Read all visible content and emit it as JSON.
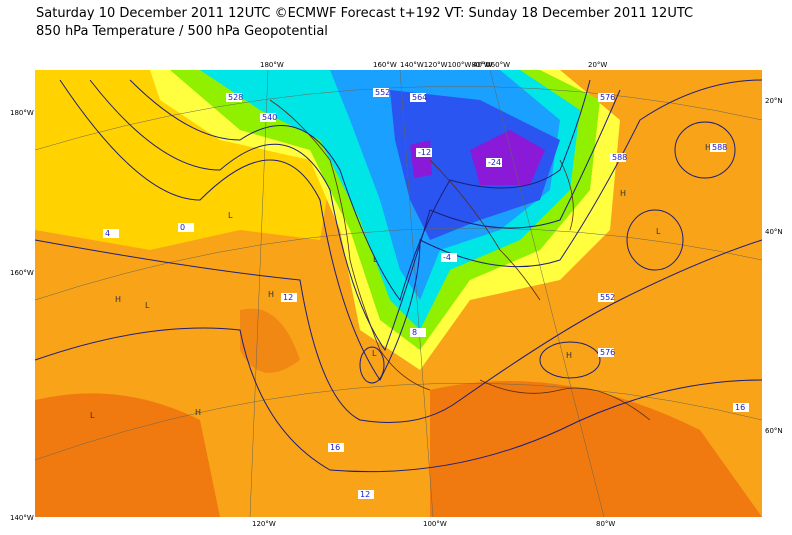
{
  "header": {
    "line1": "Saturday 10 December 2011 12UTC ©ECMWF Forecast t+192 VT: Sunday 18 December 2011 12UTC",
    "line2": "850 hPa Temperature / 500 hPa Geopotential"
  },
  "map": {
    "top_labels": [
      "180°W",
      "160°W",
      "140°W120°W100°W80°W60°W",
      "40°W",
      "20°W"
    ],
    "left_labels": [
      "180°W",
      "160°W",
      "140°W"
    ],
    "right_labels": [
      "20°N",
      "40°N",
      "60°N"
    ],
    "bottom_labels": [
      "120°W",
      "100°W",
      "80°W"
    ],
    "pressure_centers": [
      "H",
      "L",
      "L",
      "H",
      "L",
      "H",
      "H",
      "L",
      "L",
      "H",
      "H",
      "L",
      "L"
    ],
    "contour_labels": [
      "528",
      "540",
      "552",
      "564",
      "576",
      "588",
      "12",
      "8",
      "4",
      "0",
      "-4",
      "-12",
      "-24",
      "16",
      "12",
      "16",
      "552",
      "576",
      "588"
    ]
  }
}
